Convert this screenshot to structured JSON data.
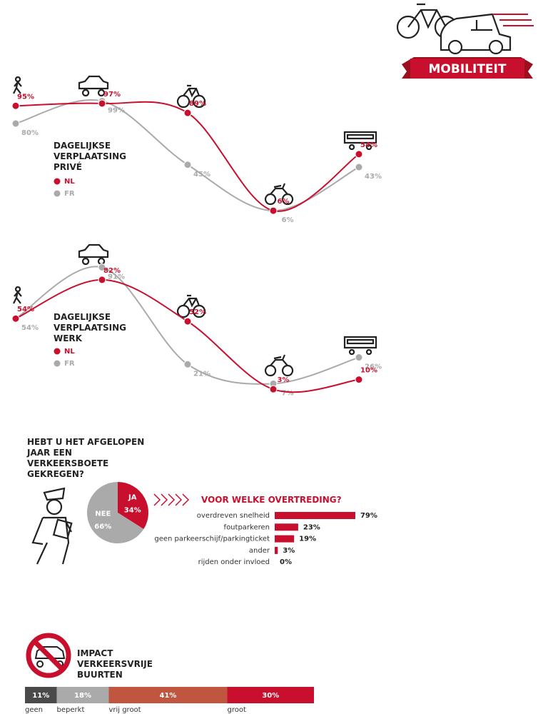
{
  "header": {
    "badge": "MOBILITEIT"
  },
  "chart_data": [
    {
      "type": "line",
      "title": "DAGELIJKSE VERPLAATSING PRIVÉ",
      "categories": [
        null,
        null,
        null,
        null,
        null
      ],
      "ylim": [
        0,
        100
      ],
      "series": [
        {
          "name": "NL",
          "color": "#c8102e",
          "values": [
            95,
            97,
            89,
            6,
            54
          ],
          "value_labels": [
            "95%",
            "97%",
            "89%",
            "6%",
            "54%"
          ]
        },
        {
          "name": "FR",
          "color": "#aaaaaa",
          "values": [
            80,
            99,
            45,
            6,
            43
          ],
          "value_labels": [
            "80%",
            "99%",
            "45%",
            "6%",
            "43%"
          ]
        }
      ]
    },
    {
      "type": "line",
      "title": "DAGELIJKSE VERPLAATSING WERK",
      "categories": [
        null,
        null,
        null,
        null,
        null
      ],
      "ylim": [
        0,
        100
      ],
      "series": [
        {
          "name": "NL",
          "color": "#c8102e",
          "values": [
            54,
            82,
            52,
            3,
            10
          ],
          "value_labels": [
            "54%",
            "82%",
            "52%",
            "3%",
            "10%"
          ]
        },
        {
          "name": "FR",
          "color": "#aaaaaa",
          "values": [
            54,
            91,
            21,
            7,
            26
          ],
          "value_labels": [
            "54%",
            "91%",
            "21%",
            "7%",
            "26%"
          ]
        }
      ]
    },
    {
      "type": "pie",
      "title": "HEBT U HET AFGELOPEN JAAR EEN VERKEERSBOETE GEKREGEN?",
      "categories": [
        "JA",
        "NEE"
      ],
      "values": [
        34,
        66
      ],
      "value_labels": [
        "34%",
        "66%"
      ],
      "colors": [
        "#c8102e",
        "#aaaaaa"
      ]
    },
    {
      "type": "hbar",
      "title": "VOOR WELKE OVERTREDING?",
      "categories": [
        "overdreven snelheid",
        "foutparkeren",
        "geen parkeerschijf/parkingticket",
        "ander",
        "rijden onder invloed"
      ],
      "values": [
        79,
        23,
        19,
        3,
        0
      ],
      "value_labels": [
        "79%",
        "23%",
        "19%",
        "3%",
        "0%"
      ],
      "color": "#c8102e"
    },
    {
      "type": "stacked-bar",
      "title": "IMPACT VERKEERSVRIJE BUURTEN",
      "series": [
        {
          "name": "geen",
          "color": "#4a4a4a",
          "values": [
            11
          ],
          "value_labels": [
            "11%"
          ]
        },
        {
          "name": "beperkt",
          "color": "#aaaaaa",
          "values": [
            18
          ],
          "value_labels": [
            "18%"
          ]
        },
        {
          "name": "vrij groot",
          "color": "#c0563f",
          "values": [
            41
          ],
          "value_labels": [
            "41%"
          ]
        },
        {
          "name": "groot",
          "color": "#c8102e",
          "values": [
            30
          ],
          "value_labels": [
            "30%"
          ]
        }
      ]
    }
  ]
}
